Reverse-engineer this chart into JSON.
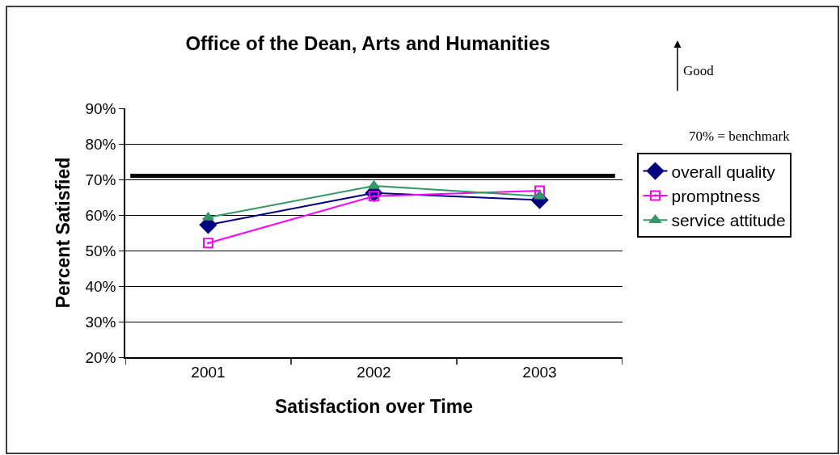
{
  "chart_data": {
    "type": "line",
    "title": "Office of the Dean, Arts and Humanities",
    "xlabel": "Satisfaction over Time",
    "ylabel": "Percent Satisfied",
    "categories": [
      "2001",
      "2002",
      "2003"
    ],
    "series": [
      {
        "name": "overall quality",
        "color": "#000080",
        "marker": "diamond",
        "values": [
          57.2,
          66.2,
          64.2
        ]
      },
      {
        "name": "promptness",
        "color": "#ff00ff",
        "marker": "square",
        "values": [
          52.1,
          65.3,
          66.8
        ]
      },
      {
        "name": "service attitude",
        "color": "#339966",
        "marker": "triangle",
        "values": [
          59.3,
          68.2,
          65.3
        ]
      }
    ],
    "ylim": [
      20,
      90
    ],
    "yticks": [
      {
        "value": 20,
        "label": "20%"
      },
      {
        "value": 30,
        "label": "30%"
      },
      {
        "value": 40,
        "label": "40%"
      },
      {
        "value": 50,
        "label": "50%"
      },
      {
        "value": 60,
        "label": "60%"
      },
      {
        "value": 70,
        "label": "70%"
      },
      {
        "value": 80,
        "label": "80%"
      },
      {
        "value": 90,
        "label": "90%"
      }
    ],
    "ref_lines": [
      {
        "axis": "y",
        "value": 71,
        "color": "#000000"
      }
    ],
    "annotations": [
      "Good",
      "70% = benchmark"
    ],
    "grid": "y",
    "legend": "right",
    "line_style": "solid"
  }
}
